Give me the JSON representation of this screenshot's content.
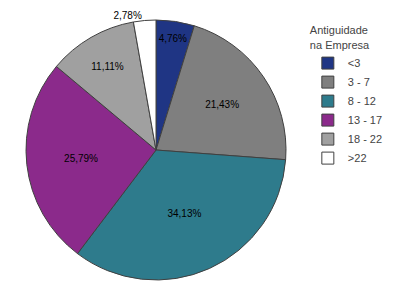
{
  "chart_data": {
    "type": "pie",
    "categories": [
      "<3",
      "3 - 7",
      "8 - 12",
      "13 - 17",
      "18 - 22",
      ">22"
    ],
    "values": [
      4.76,
      21.43,
      34.13,
      25.79,
      11.11,
      2.78
    ],
    "value_labels": [
      "4,76%",
      "21,43%",
      "34,13%",
      "25,79%",
      "11,11%",
      "2,78%"
    ],
    "colors": [
      "#1F3584",
      "#7F7F7F",
      "#2E7B8C",
      "#8B2A8B",
      "#A0A0A0",
      "#FFFFFF"
    ],
    "legend_title": "Antiguidade\nna Empresa",
    "legend": "right",
    "data_labels": true
  }
}
